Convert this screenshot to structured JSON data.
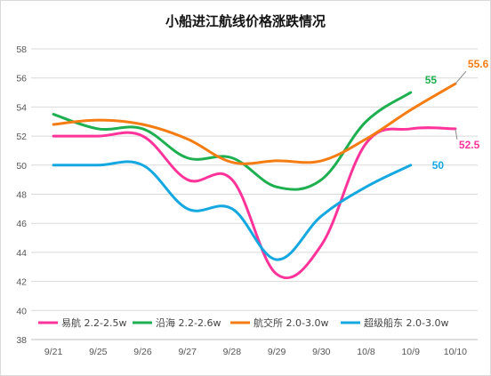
{
  "chart_data": {
    "type": "line",
    "title": "小船进江航线价格涨跌情况",
    "categories": [
      "9/21",
      "9/25",
      "9/26",
      "9/27",
      "9/28",
      "9/29",
      "9/30",
      "10/8",
      "10/9",
      "10/10"
    ],
    "ylim": [
      38,
      58
    ],
    "yticks": [
      "38",
      "40",
      "42",
      "44",
      "46",
      "48",
      "50",
      "52",
      "54",
      "56",
      "58"
    ],
    "grid": "horizontal",
    "legend": "bottom-inside",
    "series": [
      {
        "name": "易航 2.2-2.5w",
        "color": "#ff3399",
        "values": [
          52,
          52,
          52,
          49,
          49,
          42.5,
          44.5,
          51.5,
          52.5,
          52.5
        ],
        "end_label": "52.5"
      },
      {
        "name": "沿海 2.2-2.6w",
        "color": "#1eaf50",
        "values": [
          53.5,
          52.5,
          52.5,
          50.5,
          50.5,
          48.5,
          49,
          53,
          55,
          null
        ],
        "end_label": "55"
      },
      {
        "name": "航交所 2.0-3.0w",
        "color": "#f57c12",
        "values": [
          52.8,
          53.1,
          52.8,
          51.8,
          50.2,
          50.3,
          50.3,
          51.8,
          53.8,
          55.6
        ],
        "end_label": "55.6"
      },
      {
        "name": "超级船东 2.0-3.0w",
        "color": "#15a8e0",
        "values": [
          50,
          50,
          50,
          47,
          47,
          43.5,
          46.5,
          48.5,
          50,
          null
        ],
        "end_label": "50"
      }
    ]
  }
}
